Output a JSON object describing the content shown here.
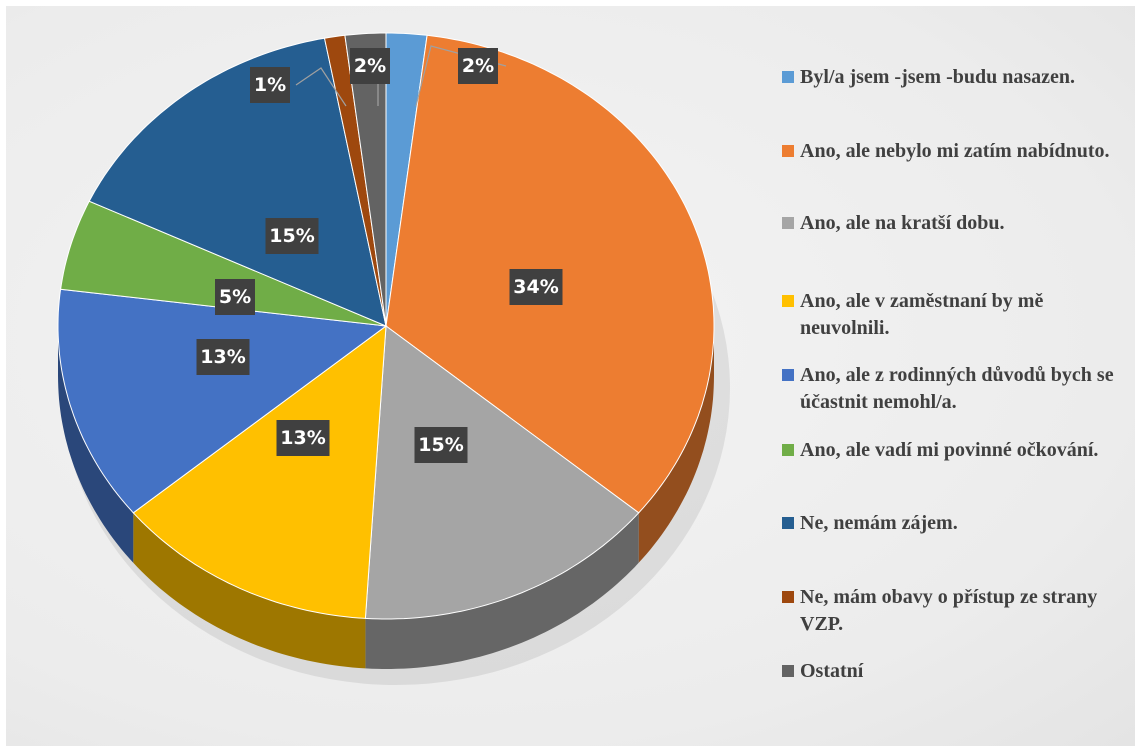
{
  "chart_data": {
    "type": "pie",
    "categories": [
      "Byl/a jsem -jsem -budu nasazen.",
      "Ano, ale nebylo mi zatím nabídnuto.",
      "Ano, ale na kratší dobu.",
      "Ano, ale v zaměstnaní by mě neuvolnili.",
      "Ano, ale z rodinných důvodů bych se účastnit nemohl/a.",
      "Ano, ale vadí mi povinné očkování.",
      "Ne, nemám zájem.",
      "Ne, mám obavy o přístup ze strany VZP.",
      "Ostatní"
    ],
    "values": [
      2,
      34,
      15,
      13,
      13,
      5,
      15,
      1,
      2
    ],
    "value_labels": [
      "2%",
      "34%",
      "15%",
      "13%",
      "13%",
      "5%",
      "15%",
      "1%",
      "2%"
    ],
    "colors": [
      "#5b9bd5",
      "#ed7d31",
      "#a5a5a5",
      "#ffc000",
      "#4472c4",
      "#70ad47",
      "#255e91",
      "#9e480e",
      "#636363"
    ],
    "legend": "right"
  }
}
